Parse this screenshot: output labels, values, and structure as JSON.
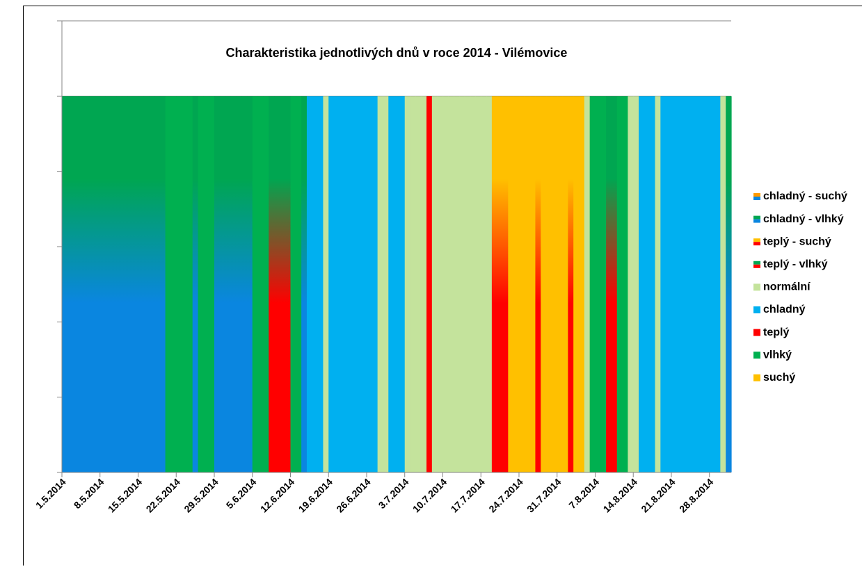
{
  "chart_data": {
    "type": "stacked-bar",
    "title": "Charakteristika jednotlivých dnů v roce 2014 - Vilémovice",
    "categories": [
      "1.5.2014",
      null,
      null,
      null,
      null,
      null,
      null,
      "8.5.2014",
      null,
      null,
      null,
      null,
      null,
      null,
      "15.5.2014",
      null,
      null,
      null,
      null,
      null,
      null,
      "22.5.2014",
      null,
      null,
      null,
      null,
      null,
      null,
      "29.5.2014",
      null,
      null,
      null,
      null,
      null,
      null,
      "5.6.2014",
      null,
      null,
      null,
      null,
      null,
      null,
      "12.6.2014",
      null,
      null,
      null,
      null,
      null,
      null,
      "19.6.2014",
      null,
      null,
      null,
      null,
      null,
      null,
      "26.6.2014",
      null,
      null,
      null,
      null,
      null,
      null,
      "3.7.2014",
      null,
      null,
      null,
      null,
      null,
      null,
      "10.7.2014",
      null,
      null,
      null,
      null,
      null,
      null,
      "17.7.2014",
      null,
      null,
      null,
      null,
      null,
      null,
      "24.7.2014",
      null,
      null,
      null,
      null,
      null,
      null,
      "31.7.2014",
      null,
      null,
      null,
      null,
      null,
      null,
      "7.8.2014",
      null,
      null,
      null,
      null,
      null,
      null,
      "14.8.2014",
      null,
      null,
      null,
      null,
      null,
      null,
      "21.8.2014",
      null,
      null,
      null,
      null,
      null,
      null,
      "28.8.2014",
      null,
      null,
      null
    ],
    "ylim": [
      0,
      1.2
    ],
    "yticks": [
      0,
      0.2,
      0.4,
      0.6,
      0.8,
      1,
      1.2
    ],
    "grid": true,
    "series": [
      {
        "name": "chladný - suchý",
        "color": [
          "#0a86e0",
          "#ff9900"
        ],
        "values": [
          0,
          0,
          0,
          0,
          0,
          0,
          0,
          0,
          0,
          0,
          0,
          0,
          0,
          0,
          0,
          0,
          0,
          0,
          0,
          0,
          0,
          0,
          0,
          0,
          0,
          0,
          0,
          0,
          0,
          0,
          0,
          0,
          0,
          0,
          0,
          0,
          0,
          0,
          0,
          0,
          0,
          0,
          0,
          0,
          0,
          0,
          0,
          0,
          0,
          0,
          0,
          0,
          0,
          0,
          0,
          0,
          0,
          0,
          0,
          0,
          0,
          0,
          0,
          0,
          0,
          0,
          0,
          0,
          0,
          0,
          0,
          0,
          0,
          0,
          0,
          0,
          0,
          0,
          0,
          0,
          0,
          0,
          0,
          0,
          0,
          0,
          0,
          0,
          0,
          0,
          0,
          0,
          0,
          0,
          0,
          0,
          0,
          0,
          0,
          0,
          0,
          0,
          0,
          0,
          0,
          0,
          0,
          0,
          0,
          0,
          0,
          0,
          0,
          0,
          0,
          0,
          0,
          0,
          0,
          0,
          0,
          0,
          0
        ]
      },
      {
        "name": "chladný - vlhký",
        "color": [
          "#0a86e0",
          "#00a651"
        ],
        "values": [
          1,
          1,
          1,
          1,
          1,
          1,
          1,
          1,
          1,
          1,
          1,
          1,
          1,
          1,
          1,
          1,
          1,
          1,
          1,
          0,
          0,
          0,
          0,
          0,
          1,
          0,
          0,
          0,
          1,
          1,
          1,
          1,
          1,
          1,
          1,
          0,
          0,
          0,
          0,
          0,
          0,
          0,
          0,
          0,
          1,
          0,
          0,
          0,
          0,
          0,
          0,
          0,
          0,
          0,
          0,
          0,
          0,
          0,
          0,
          0,
          0,
          0,
          0,
          0,
          0,
          0,
          0,
          0,
          0,
          0,
          0,
          0,
          0,
          0,
          0,
          0,
          0,
          0,
          0,
          0,
          0,
          0,
          0,
          0,
          0,
          0,
          0,
          0,
          0,
          0,
          0,
          0,
          0,
          0,
          0,
          0,
          0,
          0,
          0,
          0,
          0,
          0,
          0,
          0,
          0,
          0,
          0,
          0,
          0,
          0,
          0,
          0,
          0,
          0,
          0,
          0,
          0,
          0,
          0,
          0,
          0,
          0,
          1
        ]
      },
      {
        "name": "teplý - suchý",
        "color": [
          "#ff0000",
          "#ffc000"
        ],
        "values": [
          0,
          0,
          0,
          0,
          0,
          0,
          0,
          0,
          0,
          0,
          0,
          0,
          0,
          0,
          0,
          0,
          0,
          0,
          0,
          0,
          0,
          0,
          0,
          0,
          0,
          0,
          0,
          0,
          0,
          0,
          0,
          0,
          0,
          0,
          0,
          0,
          0,
          0,
          0,
          0,
          0,
          0,
          0,
          0,
          0,
          0,
          0,
          0,
          0,
          0,
          0,
          0,
          0,
          0,
          0,
          0,
          0,
          0,
          0,
          0,
          0,
          0,
          0,
          0,
          0,
          0,
          0,
          0,
          0,
          0,
          0,
          0,
          0,
          0,
          0,
          0,
          0,
          0,
          0,
          1,
          1,
          1,
          0,
          0,
          0,
          0,
          0,
          1,
          0,
          0,
          0,
          0,
          0,
          1,
          0,
          0,
          0,
          0,
          0,
          0,
          0,
          0,
          0,
          0,
          0,
          0,
          0,
          0,
          0,
          0,
          0,
          0,
          0,
          0,
          0,
          0,
          0,
          0,
          0,
          0,
          0,
          0,
          0
        ]
      },
      {
        "name": "teplý - vlhký",
        "color": [
          "#ff0000",
          "#00a651"
        ],
        "values": [
          0,
          0,
          0,
          0,
          0,
          0,
          0,
          0,
          0,
          0,
          0,
          0,
          0,
          0,
          0,
          0,
          0,
          0,
          0,
          0,
          0,
          0,
          0,
          0,
          0,
          0,
          0,
          0,
          0,
          0,
          0,
          0,
          0,
          0,
          0,
          0,
          0,
          0,
          1,
          1,
          1,
          1,
          0,
          0,
          0,
          0,
          0,
          0,
          0,
          0,
          0,
          0,
          0,
          0,
          0,
          0,
          0,
          0,
          0,
          0,
          0,
          0,
          0,
          0,
          0,
          0,
          0,
          0,
          0,
          0,
          0,
          0,
          0,
          0,
          0,
          0,
          0,
          0,
          0,
          0,
          0,
          0,
          0,
          0,
          0,
          0,
          0,
          0,
          0,
          0,
          0,
          0,
          0,
          0,
          0,
          0,
          0,
          0,
          0,
          0,
          1,
          1,
          0,
          0,
          0,
          0,
          0,
          0,
          0,
          0,
          0,
          0,
          0,
          0,
          0,
          0,
          0,
          0,
          0,
          0,
          0,
          0,
          0
        ]
      },
      {
        "name": "normální",
        "color": "#c4e39c",
        "values": [
          0,
          0,
          0,
          0,
          0,
          0,
          0,
          0,
          0,
          0,
          0,
          0,
          0,
          0,
          0,
          0,
          0,
          0,
          0,
          0,
          0,
          0,
          0,
          0,
          0,
          0,
          0,
          0,
          0,
          0,
          0,
          0,
          0,
          0,
          0,
          0,
          0,
          0,
          0,
          0,
          0,
          0,
          0,
          0,
          0,
          0,
          0,
          0,
          1,
          0,
          0,
          0,
          0,
          0,
          0,
          0,
          0,
          0,
          1,
          1,
          0,
          0,
          0,
          1,
          1,
          1,
          1,
          0,
          1,
          1,
          1,
          1,
          1,
          1,
          1,
          1,
          1,
          1,
          1,
          0,
          0,
          0,
          0,
          0,
          0,
          0,
          0,
          0,
          0,
          0,
          0,
          0,
          0,
          0,
          0,
          0,
          1,
          0,
          0,
          0,
          0,
          0,
          0,
          0,
          1,
          1,
          0,
          0,
          0,
          1,
          0,
          0,
          0,
          0,
          0,
          0,
          0,
          0,
          0,
          0,
          0,
          1,
          0
        ]
      },
      {
        "name": "chladný",
        "color": "#00b0f0",
        "values": [
          0,
          0,
          0,
          0,
          0,
          0,
          0,
          0,
          0,
          0,
          0,
          0,
          0,
          0,
          0,
          0,
          0,
          0,
          0,
          0,
          0,
          0,
          0,
          0,
          0,
          0,
          0,
          0,
          0,
          0,
          0,
          0,
          0,
          0,
          0,
          0,
          0,
          0,
          0,
          0,
          0,
          0,
          0,
          0,
          0,
          1,
          1,
          1,
          0,
          1,
          1,
          1,
          1,
          1,
          1,
          1,
          1,
          1,
          0,
          0,
          1,
          1,
          1,
          0,
          0,
          0,
          0,
          0,
          0,
          0,
          0,
          0,
          0,
          0,
          0,
          0,
          0,
          0,
          0,
          0,
          0,
          0,
          0,
          0,
          0,
          0,
          0,
          0,
          0,
          0,
          0,
          0,
          0,
          0,
          0,
          0,
          0,
          0,
          0,
          0,
          0,
          0,
          0,
          0,
          0,
          0,
          1,
          1,
          1,
          0,
          1,
          1,
          1,
          1,
          1,
          1,
          1,
          1,
          1,
          1,
          1,
          0,
          0
        ]
      },
      {
        "name": "teplý",
        "color": "#ff0000",
        "values": [
          0,
          0,
          0,
          0,
          0,
          0,
          0,
          0,
          0,
          0,
          0,
          0,
          0,
          0,
          0,
          0,
          0,
          0,
          0,
          0,
          0,
          0,
          0,
          0,
          0,
          0,
          0,
          0,
          0,
          0,
          0,
          0,
          0,
          0,
          0,
          0,
          0,
          0,
          0,
          0,
          0,
          0,
          0,
          0,
          0,
          0,
          0,
          0,
          0,
          0,
          0,
          0,
          0,
          0,
          0,
          0,
          0,
          0,
          0,
          0,
          0,
          0,
          0,
          0,
          0,
          0,
          0,
          1,
          0,
          0,
          0,
          0,
          0,
          0,
          0,
          0,
          0,
          0,
          0,
          0,
          0,
          0,
          0,
          0,
          0,
          0,
          0,
          0,
          0,
          0,
          0,
          0,
          0,
          0,
          0,
          0,
          0,
          0,
          0,
          0,
          0,
          0,
          0,
          0,
          0,
          0,
          0,
          0,
          0,
          0,
          0,
          0,
          0,
          0,
          0,
          0,
          0,
          0,
          0,
          0,
          0,
          0,
          0
        ]
      },
      {
        "name": "vlhký",
        "color": "#00b050",
        "values": [
          0,
          0,
          0,
          0,
          0,
          0,
          0,
          0,
          0,
          0,
          0,
          0,
          0,
          0,
          0,
          0,
          0,
          0,
          0,
          1,
          1,
          1,
          1,
          1,
          0,
          1,
          1,
          1,
          0,
          0,
          0,
          0,
          0,
          0,
          0,
          1,
          1,
          1,
          0,
          0,
          0,
          0,
          1,
          1,
          0,
          0,
          0,
          0,
          0,
          0,
          0,
          0,
          0,
          0,
          0,
          0,
          0,
          0,
          0,
          0,
          0,
          0,
          0,
          0,
          0,
          0,
          0,
          0,
          0,
          0,
          0,
          0,
          0,
          0,
          0,
          0,
          0,
          0,
          0,
          0,
          0,
          0,
          0,
          0,
          0,
          0,
          0,
          0,
          0,
          0,
          0,
          0,
          0,
          0,
          0,
          0,
          0,
          1,
          1,
          1,
          0,
          0,
          1,
          1,
          0,
          0,
          0,
          0,
          0,
          0,
          0,
          0,
          0,
          0,
          0,
          0,
          0,
          0,
          0,
          0,
          0,
          0,
          0
        ]
      },
      {
        "name": "suchý",
        "color": "#ffc000",
        "values": [
          0,
          0,
          0,
          0,
          0,
          0,
          0,
          0,
          0,
          0,
          0,
          0,
          0,
          0,
          0,
          0,
          0,
          0,
          0,
          0,
          0,
          0,
          0,
          0,
          0,
          0,
          0,
          0,
          0,
          0,
          0,
          0,
          0,
          0,
          0,
          0,
          0,
          0,
          0,
          0,
          0,
          0,
          0,
          0,
          0,
          0,
          0,
          0,
          0,
          0,
          0,
          0,
          0,
          0,
          0,
          0,
          0,
          0,
          0,
          0,
          0,
          0,
          0,
          0,
          0,
          0,
          0,
          0,
          0,
          0,
          0,
          0,
          0,
          0,
          0,
          0,
          0,
          0,
          0,
          0,
          0,
          0,
          1,
          1,
          1,
          1,
          1,
          0,
          1,
          1,
          1,
          1,
          1,
          0,
          1,
          1,
          0,
          0,
          0,
          0,
          0,
          0,
          0,
          0,
          0,
          0,
          0,
          0,
          0,
          0,
          0,
          0,
          0,
          0,
          0,
          0,
          0,
          0,
          0,
          0,
          0,
          0,
          0
        ]
      }
    ]
  }
}
